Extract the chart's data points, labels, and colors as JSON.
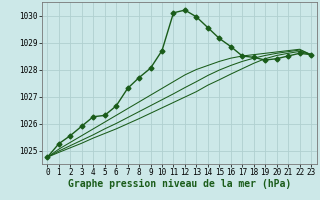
{
  "xlabel": "Graphe pression niveau de la mer (hPa)",
  "bg_color": "#cce8e8",
  "grid_color": "#b0d0d0",
  "line_color": "#1a5c1a",
  "x": [
    0,
    1,
    2,
    3,
    4,
    5,
    6,
    7,
    8,
    9,
    10,
    11,
    12,
    13,
    14,
    15,
    16,
    17,
    18,
    19,
    20,
    21,
    22,
    23
  ],
  "y_main": [
    1024.75,
    1025.25,
    1025.55,
    1025.9,
    1026.25,
    1026.3,
    1026.65,
    1027.3,
    1027.7,
    1028.05,
    1028.7,
    1030.1,
    1030.2,
    1029.95,
    1029.55,
    1029.15,
    1028.85,
    1028.5,
    1028.45,
    1028.35,
    1028.4,
    1028.5,
    1028.6,
    1028.55
  ],
  "y_line2": [
    1024.75,
    1025.05,
    1025.3,
    1025.55,
    1025.8,
    1026.05,
    1026.3,
    1026.55,
    1026.8,
    1027.05,
    1027.3,
    1027.55,
    1027.8,
    1028.0,
    1028.15,
    1028.3,
    1028.42,
    1028.5,
    1028.55,
    1028.6,
    1028.65,
    1028.7,
    1028.75,
    1028.55
  ],
  "y_line3": [
    1024.75,
    1024.98,
    1025.18,
    1025.38,
    1025.58,
    1025.8,
    1026.0,
    1026.22,
    1026.44,
    1026.66,
    1026.88,
    1027.1,
    1027.33,
    1027.55,
    1027.78,
    1027.98,
    1028.15,
    1028.3,
    1028.42,
    1028.52,
    1028.6,
    1028.66,
    1028.72,
    1028.55
  ],
  "y_line4": [
    1024.75,
    1024.93,
    1025.1,
    1025.27,
    1025.46,
    1025.63,
    1025.8,
    1025.99,
    1026.18,
    1026.38,
    1026.58,
    1026.78,
    1026.98,
    1027.18,
    1027.42,
    1027.62,
    1027.83,
    1028.03,
    1028.23,
    1028.4,
    1028.52,
    1028.6,
    1028.67,
    1028.55
  ],
  "ylim": [
    1024.5,
    1030.5
  ],
  "yticks": [
    1025,
    1026,
    1027,
    1028,
    1029,
    1030
  ],
  "xticks": [
    0,
    1,
    2,
    3,
    4,
    5,
    6,
    7,
    8,
    9,
    10,
    11,
    12,
    13,
    14,
    15,
    16,
    17,
    18,
    19,
    20,
    21,
    22,
    23
  ],
  "marker": "D",
  "marker_size": 2.5,
  "linewidth": 1.0,
  "label_fontsize": 7,
  "tick_fontsize": 5.5
}
